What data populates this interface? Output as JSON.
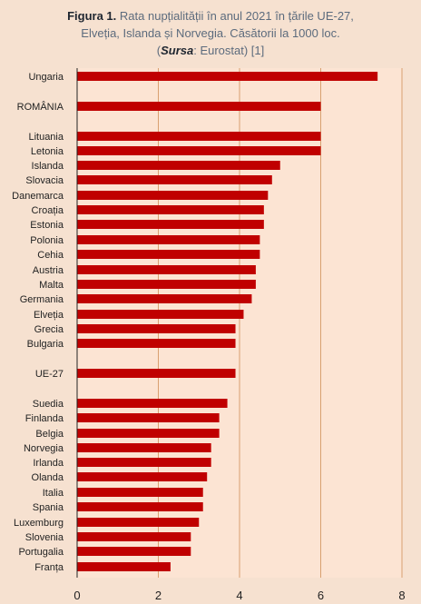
{
  "title": {
    "label": "Figura 1.",
    "line1_rest": "Rata nupțialității în anul 2021 în țările UE-27,",
    "line2": "Elveția, Islanda și Norvegia. Căsătorii la 1000 loc.",
    "source_open": "(",
    "source_label": "Sursa",
    "source_rest": ": Eurostat)  [1]"
  },
  "colors": {
    "background": "#f6e1d0",
    "plot_area": "#fce4d3",
    "bar": "#c00000",
    "grid": "#d8a070",
    "axis": "#222222"
  },
  "chart_data": {
    "type": "bar",
    "orientation": "horizontal",
    "categories": [
      "Ungaria",
      "ROMÂNIA",
      "Lituania",
      "Letonia",
      "Islanda",
      "Slovacia",
      "Danemarca",
      "Croația",
      "Estonia",
      "Polonia",
      "Cehia",
      "Austria",
      "Malta",
      "Germania",
      "Elveția",
      "Grecia",
      "Bulgaria",
      "UE-27",
      "Suedia",
      "Finlanda",
      "Belgia",
      "Norvegia",
      "Irlanda",
      "Olanda",
      "Italia",
      "Spania",
      "Luxemburg",
      "Slovenia",
      "Portugalia",
      "Franța"
    ],
    "values": [
      7.4,
      6.0,
      6.0,
      6.0,
      5.0,
      4.8,
      4.7,
      4.6,
      4.6,
      4.5,
      4.5,
      4.4,
      4.4,
      4.3,
      4.1,
      3.9,
      3.9,
      3.9,
      3.7,
      3.5,
      3.5,
      3.3,
      3.3,
      3.2,
      3.1,
      3.1,
      3.0,
      2.8,
      2.8,
      2.3
    ],
    "xlim": [
      0,
      8
    ],
    "xticks": [
      "0",
      "2",
      "4",
      "6",
      "8"
    ],
    "grid": true
  }
}
